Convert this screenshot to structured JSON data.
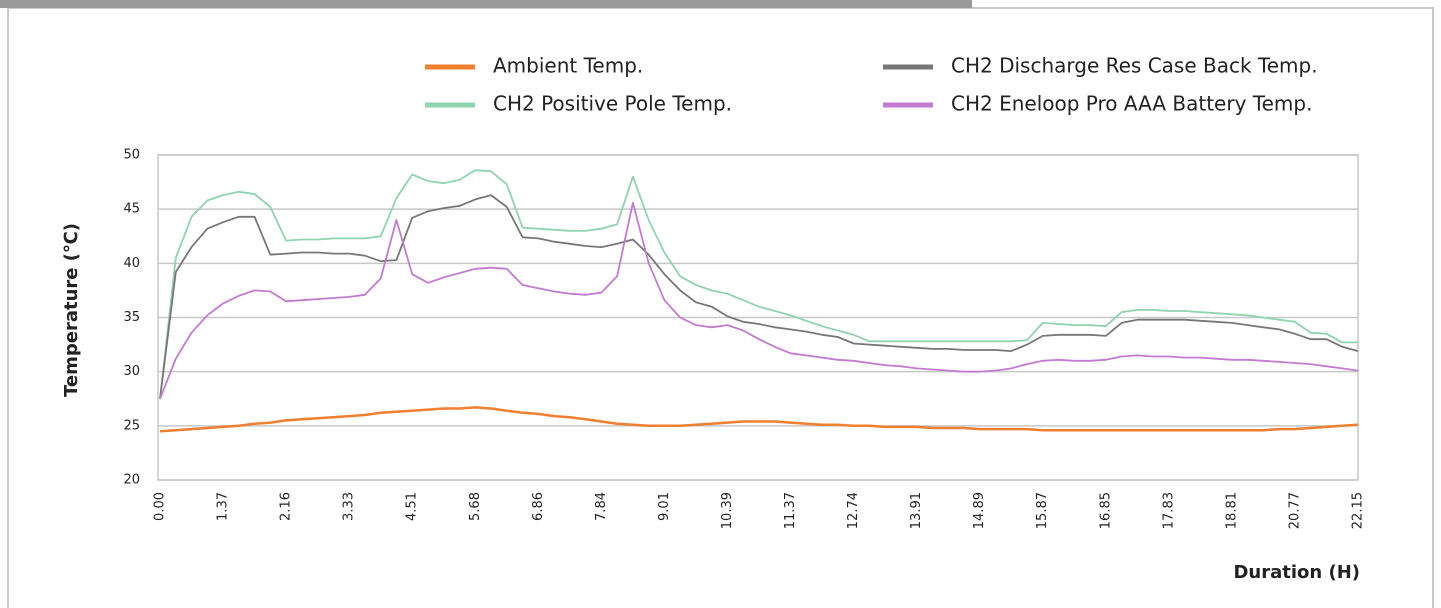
{
  "chart_data": {
    "type": "line",
    "y_label": "Temperature (℃)",
    "x_label": "Duration (H)",
    "categories": [
      "0.00",
      null,
      null,
      null,
      "1.37",
      null,
      null,
      null,
      "2.16",
      null,
      null,
      null,
      "3.33",
      null,
      null,
      null,
      "4.51",
      null,
      null,
      null,
      "5.68",
      null,
      null,
      null,
      "6.86",
      null,
      null,
      null,
      "7.84",
      null,
      null,
      null,
      "9.01",
      null,
      null,
      null,
      "10.39",
      null,
      null,
      null,
      "11.37",
      null,
      null,
      null,
      "12.74",
      null,
      null,
      null,
      "13.91",
      null,
      null,
      null,
      "14.89",
      null,
      null,
      null,
      "15.87",
      null,
      null,
      null,
      "16.85",
      null,
      null,
      null,
      "17.83",
      null,
      null,
      null,
      "18.81",
      null,
      null,
      null,
      "20.77",
      null,
      null,
      null,
      "22.15"
    ],
    "series": [
      {
        "name": "Ambient Temp.",
        "color": "#f07f2f",
        "values": [
          24.5,
          24.6,
          24.7,
          24.8,
          24.9,
          25,
          25.2,
          25.3,
          25.5,
          25.6,
          25.7,
          25.8,
          25.9,
          26,
          26.2,
          26.3,
          26.4,
          26.5,
          26.6,
          26.6,
          26.7,
          26.6,
          26.4,
          26.2,
          26.1,
          25.9,
          25.8,
          25.6,
          25.4,
          25.2,
          25.1,
          25,
          25,
          25,
          25.1,
          25.2,
          25.3,
          25.4,
          25.4,
          25.4,
          25.3,
          25.2,
          25.1,
          25.1,
          25,
          25,
          24.9,
          24.9,
          24.9,
          24.8,
          24.8,
          24.8,
          24.7,
          24.7,
          24.7,
          24.7,
          24.6,
          24.6,
          24.6,
          24.6,
          24.6,
          24.6,
          24.6,
          24.6,
          24.6,
          24.6,
          24.6,
          24.6,
          24.6,
          24.6,
          24.6,
          24.7,
          24.7,
          24.8,
          24.9,
          25,
          25.1
        ]
      },
      {
        "name": "CH2 Positive Pole Temp.",
        "color": "#8fd3b0",
        "values": [
          27.5,
          40.5,
          44.3,
          45.8,
          46.3,
          46.6,
          46.4,
          45.2,
          42.1,
          42.2,
          42.2,
          42.3,
          42.3,
          42.3,
          42.5,
          46,
          48.2,
          47.6,
          47.4,
          47.7,
          48.6,
          48.5,
          47.3,
          43.3,
          43.2,
          43.1,
          43,
          43,
          43.2,
          43.6,
          48,
          44,
          41,
          38.8,
          38,
          37.5,
          37.2,
          36.6,
          36,
          35.6,
          35.2,
          34.7,
          34.2,
          33.8,
          33.4,
          32.8,
          32.8,
          32.8,
          32.8,
          32.8,
          32.8,
          32.8,
          32.8,
          32.8,
          32.8,
          32.9,
          34.5,
          34.4,
          34.3,
          34.3,
          34.2,
          35.5,
          35.7,
          35.7,
          35.6,
          35.6,
          35.5,
          35.4,
          35.3,
          35.2,
          35,
          34.8,
          34.6,
          33.6,
          33.5,
          32.7,
          32.7
        ]
      },
      {
        "name": "CH2 Discharge Res Case Back Temp.",
        "color": "#777777",
        "values": [
          27.5,
          39.2,
          41.5,
          43.2,
          43.8,
          44.3,
          44.3,
          40.8,
          40.9,
          41,
          41,
          40.9,
          40.9,
          40.7,
          40.2,
          40.3,
          44.2,
          44.8,
          45.1,
          45.3,
          45.9,
          46.3,
          45.2,
          42.4,
          42.3,
          42,
          41.8,
          41.6,
          41.5,
          41.8,
          42.2,
          40.8,
          39,
          37.5,
          36.4,
          36,
          35.1,
          34.6,
          34.4,
          34.1,
          33.9,
          33.7,
          33.4,
          33.2,
          32.6,
          32.5,
          32.4,
          32.3,
          32.2,
          32.1,
          32.1,
          32,
          32,
          32,
          31.9,
          32.5,
          33.3,
          33.4,
          33.4,
          33.4,
          33.3,
          34.5,
          34.8,
          34.8,
          34.8,
          34.8,
          34.7,
          34.6,
          34.5,
          34.3,
          34.1,
          33.9,
          33.5,
          33,
          33,
          32.3,
          31.9
        ]
      },
      {
        "name": "CH2 Eneloop Pro AAA Battery Temp.",
        "color": "#c27bd0",
        "values": [
          27.5,
          31.2,
          33.6,
          35.2,
          36.3,
          37,
          37.5,
          37.4,
          36.5,
          36.6,
          36.7,
          36.8,
          36.9,
          37.1,
          38.6,
          44,
          39,
          38.2,
          38.7,
          39.1,
          39.5,
          39.6,
          39.5,
          38,
          37.7,
          37.4,
          37.2,
          37.1,
          37.3,
          38.8,
          45.6,
          40,
          36.6,
          35,
          34.3,
          34.1,
          34.3,
          33.8,
          33,
          32.3,
          31.7,
          31.5,
          31.3,
          31.1,
          31,
          30.8,
          30.6,
          30.5,
          30.3,
          30.2,
          30.1,
          30,
          30,
          30.1,
          30.3,
          30.7,
          31,
          31.1,
          31,
          31,
          31.1,
          31.4,
          31.5,
          31.4,
          31.4,
          31.3,
          31.3,
          31.2,
          31.1,
          31.1,
          31,
          30.9,
          30.8,
          30.7,
          30.5,
          30.3,
          30.1
        ]
      }
    ],
    "ylim": [
      20,
      50
    ],
    "yticks": [
      20,
      25,
      30,
      35,
      40,
      45,
      50
    ],
    "grid": true
  }
}
